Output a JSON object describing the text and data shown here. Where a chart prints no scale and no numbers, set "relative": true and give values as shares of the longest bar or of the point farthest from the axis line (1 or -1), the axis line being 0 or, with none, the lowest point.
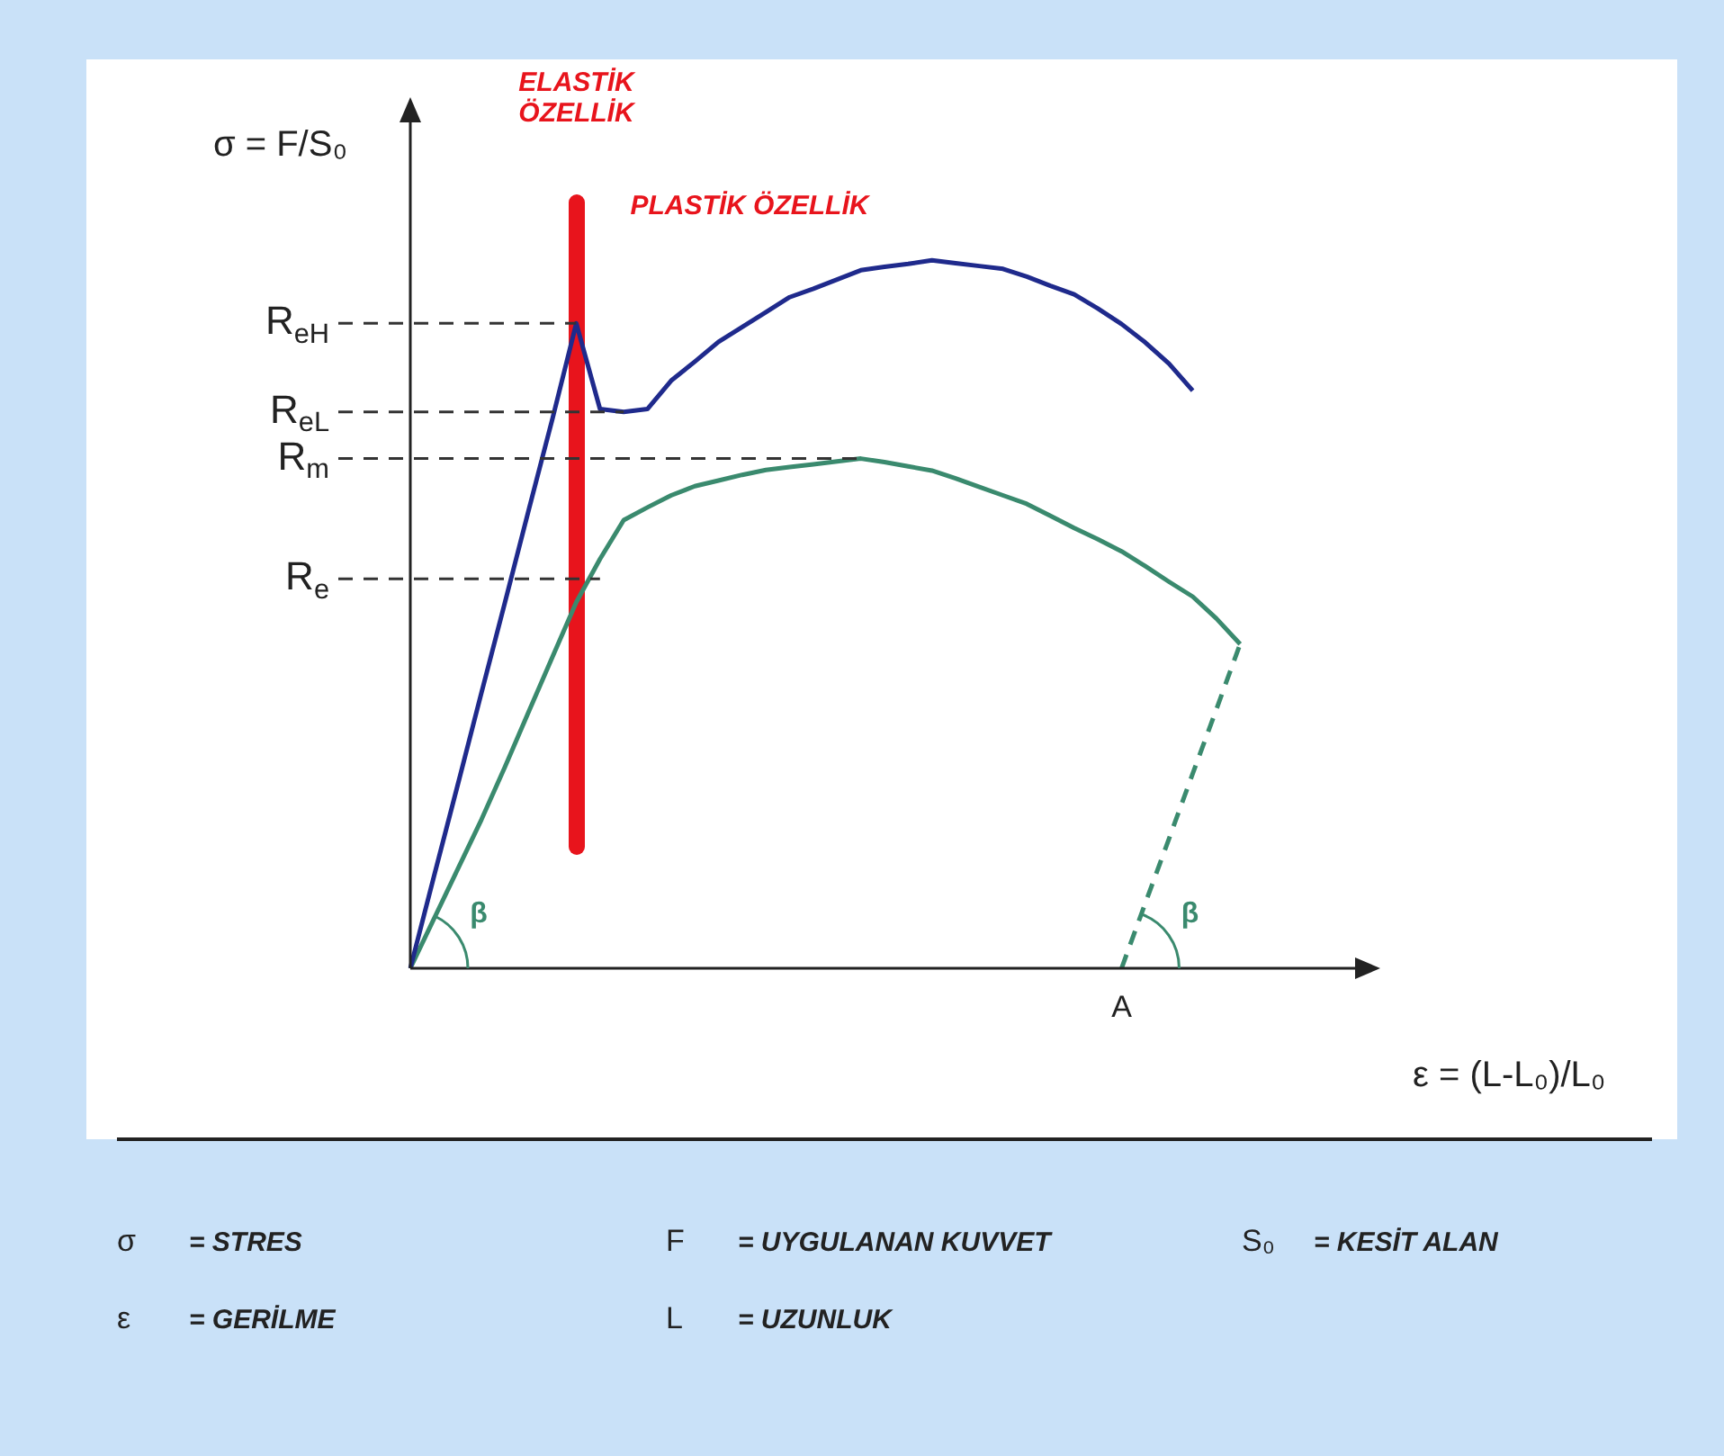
{
  "chart_data": {
    "type": "line",
    "relative": true,
    "xlabel": "ε = (L-L₀)/L₀",
    "ylabel": "σ = F/S₀",
    "categories": [
      null,
      null,
      null,
      null,
      null,
      null,
      null,
      null,
      null,
      null,
      null,
      null,
      null,
      null,
      null,
      null,
      null,
      null,
      null,
      null,
      null,
      null,
      null,
      null,
      null,
      null,
      null,
      null,
      null,
      null,
      null,
      null,
      null,
      null,
      null,
      null,
      null,
      null,
      null,
      null,
      null
    ],
    "series": [
      {
        "color": "#1f2a8c",
        "values": [
          0,
          0.13,
          0.259,
          0.389,
          0.518,
          0.648,
          0.777,
          0.911,
          0.79,
          0.786,
          0.79,
          0.83,
          0.857,
          0.885,
          0.906,
          0.927,
          0.948,
          0.96,
          0.973,
          0.986,
          0.991,
          0.995,
          1.0,
          0.996,
          0.992,
          0.988,
          0.977,
          0.964,
          0.952,
          0.932,
          0.91,
          0.884,
          0.854,
          0.816,
          null,
          null,
          null,
          null,
          null,
          null,
          null
        ]
      },
      {
        "color": "#3a8a6e",
        "values": [
          0,
          0.07,
          0.14,
          0.21,
          0.285,
          0.363,
          0.44,
          0.517,
          0.578,
          0.633,
          0.651,
          0.668,
          0.681,
          0.689,
          0.697,
          0.704,
          0.708,
          0.712,
          0.716,
          0.72,
          0.715,
          0.709,
          0.703,
          0.692,
          0.68,
          0.668,
          0.656,
          0.639,
          0.622,
          0.606,
          0.589,
          0.568,
          0.546,
          0.525,
          0.494,
          0.458,
          null,
          null,
          null,
          null,
          null
        ]
      },
      {
        "color": "#3a8a6e",
        "line_style": "dashed",
        "values": [
          null,
          null,
          null,
          null,
          null,
          null,
          null,
          null,
          null,
          null,
          null,
          null,
          null,
          null,
          null,
          null,
          null,
          null,
          null,
          null,
          null,
          null,
          null,
          null,
          null,
          null,
          null,
          null,
          null,
          null,
          0,
          0.092,
          0.183,
          0.275,
          0.366,
          0.458,
          null,
          null,
          null,
          null,
          null
        ]
      }
    ],
    "ref_lines": [
      {
        "axis": "y",
        "value": 0.911,
        "label": "R$_{eH}$"
      },
      {
        "axis": "y",
        "value": 0.786,
        "label": "R$_{eL}$"
      },
      {
        "axis": "y",
        "value": 0.72,
        "label": "R$_{m}$"
      },
      {
        "axis": "y",
        "value": 0.55,
        "label": "R$_{e}$"
      }
    ],
    "annotations": [
      "ELASTİK ÖZELLİK",
      "PLASTİK ÖZELLİK",
      "β",
      "β",
      "A",
      "σ = STRES",
      "F = UYGULANAN KUVVET",
      "S₀ = KESİT ALAN",
      "ε = GERİLME",
      "L = UZUNLUK"
    ]
  }
}
